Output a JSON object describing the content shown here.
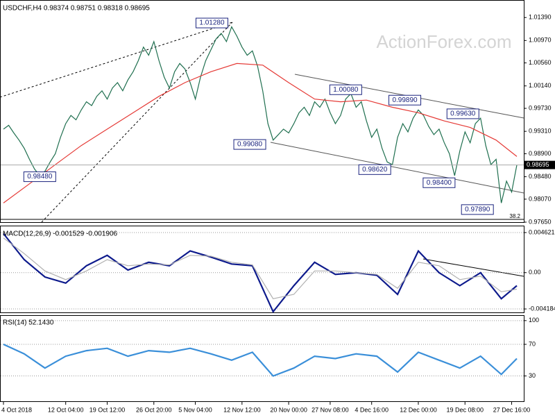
{
  "chart_data": [
    {
      "type": "line",
      "title": "USDCHF,H4 0.98374 0.98751 0.98318 0.98695",
      "watermark": "ActionForex.com",
      "fib_label": "38.2",
      "xlim": [
        0,
        99
      ],
      "xticks": [
        {
          "value": 0,
          "label": "4 Oct 2018"
        },
        {
          "value": 12,
          "label": "12 Oct 04:00"
        },
        {
          "value": 20,
          "label": "19 Oct 12:00"
        },
        {
          "value": 29,
          "label": "26 Oct 20:00"
        },
        {
          "value": 37,
          "label": "5 Nov 04:00"
        },
        {
          "value": 46,
          "label": "12 Nov 12:00"
        },
        {
          "value": 55,
          "label": "20 Nov 00:00"
        },
        {
          "value": 63,
          "label": "27 Nov 08:00"
        },
        {
          "value": 71,
          "label": "4 Dec 16:00"
        },
        {
          "value": 80,
          "label": "12 Dec 00:00"
        },
        {
          "value": 89,
          "label": "19 Dec 08:00"
        },
        {
          "value": 98,
          "label": "27 Dec 16:00"
        }
      ],
      "ylim": [
        0.9765,
        1.0171
      ],
      "yticks": [
        {
          "value": 1.0139,
          "label": "1.01390"
        },
        {
          "value": 1.0097,
          "label": "1.00970"
        },
        {
          "value": 1.0056,
          "label": "1.00560"
        },
        {
          "value": 1.0014,
          "label": "1.00140"
        },
        {
          "value": 0.9973,
          "label": "0.99730"
        },
        {
          "value": 0.9931,
          "label": "0.99310"
        },
        {
          "value": 0.989,
          "label": "0.98900"
        },
        {
          "value": 0.9848,
          "label": "0.98480"
        },
        {
          "value": 0.9807,
          "label": "0.98070"
        },
        {
          "value": 0.9765,
          "label": "0.97650"
        }
      ],
      "last": {
        "value": 0.98695,
        "label": "0.98695"
      },
      "series": [
        {
          "color": "#1f6f4f",
          "values": [
            0.9935,
            0.9942,
            0.9928,
            0.9915,
            0.99,
            0.988,
            0.9862,
            0.985,
            0.9858,
            0.9875,
            0.989,
            0.992,
            0.9945,
            0.996,
            0.9952,
            0.997,
            0.9985,
            0.9978,
            0.9995,
            1.0005,
            0.999,
            1.001,
            1.002,
            1.0005,
            1.0025,
            1.004,
            1.006,
            1.0085,
            1.007,
            1.0095,
            1.006,
            1.003,
            1.001,
            1.004,
            1.0055,
            1.0045,
            1.002,
            0.999,
            1.003,
            1.006,
            1.008,
            1.01,
            1.011,
            1.0095,
            1.0122,
            1.0105,
            1.0085,
            1.007,
            1.0078,
            1.005,
            1.0005,
            0.9945,
            0.9915,
            0.9925,
            0.9935,
            0.9928,
            0.9945,
            0.9965,
            0.9975,
            0.996,
            0.9985,
            0.9975,
            0.999,
            0.9965,
            0.9945,
            0.996,
            0.999,
            1.0,
            0.9975,
            0.9985,
            0.995,
            0.992,
            0.9935,
            0.99,
            0.9875,
            0.987,
            0.992,
            0.9945,
            0.993,
            0.9955,
            0.997,
            0.996,
            0.994,
            0.9925,
            0.9935,
            0.991,
            0.989,
            0.985,
            0.9895,
            0.993,
            0.991,
            0.9945,
            0.9955,
            0.9905,
            0.987,
            0.988,
            0.98,
            0.984,
            0.982,
            0.98695
          ]
        },
        {
          "color": "#e53935",
          "x": [
            0,
            5,
            10,
            15,
            20,
            25,
            30,
            35,
            40,
            45,
            50,
            55,
            60,
            65,
            70,
            75,
            80,
            85,
            90,
            95,
            99
          ],
          "values": [
            0.98,
            0.9835,
            0.987,
            0.9905,
            0.9935,
            0.9965,
            0.9995,
            1.002,
            1.004,
            1.0055,
            1.0052,
            1.002,
            0.999,
            0.9985,
            0.9988,
            0.9975,
            0.9965,
            0.995,
            0.9938,
            0.9915,
            0.9885
          ]
        }
      ],
      "annotations": [
        {
          "text": "1.01280",
          "x": 40.2,
          "y": 1.0129
        },
        {
          "text": "0.98480",
          "x": 7,
          "y": 0.9848
        },
        {
          "text": "0.99080",
          "x": 47.5,
          "y": 0.9907
        },
        {
          "text": "1.00080",
          "x": 66,
          "y": 1.0007
        },
        {
          "text": "0.98620",
          "x": 71.6,
          "y": 0.9861
        },
        {
          "text": "0.99890",
          "x": 77.4,
          "y": 0.9988
        },
        {
          "text": "0.98400",
          "x": 84,
          "y": 0.9837
        },
        {
          "text": "0.99630",
          "x": 88.6,
          "y": 0.9963
        },
        {
          "text": "0.97890",
          "x": 91.4,
          "y": 0.9788
        }
      ]
    },
    {
      "type": "line",
      "title": "MACD(12,26,9) -0.001529 -0.001906",
      "ylim": [
        -0.00458,
        0.00534
      ],
      "yticks": [
        0.004621,
        {
          "value": 0,
          "label": "0.00"
        },
        -0.004184
      ],
      "series": [
        {
          "color": "#0d1a8c",
          "x": [
            0,
            4,
            8,
            12,
            16,
            20,
            24,
            28,
            32,
            36,
            40,
            44,
            48,
            52,
            56,
            60,
            64,
            68,
            72,
            76,
            80,
            84,
            88,
            92,
            96,
            99
          ],
          "values": [
            0.0045,
            0.0015,
            -0.0005,
            -0.0012,
            0.0008,
            0.002,
            0.0003,
            0.0012,
            0.0008,
            0.0025,
            0.0018,
            0.001,
            0.0008,
            -0.0045,
            -0.0015,
            0.0012,
            -0.0002,
            0,
            -0.0003,
            -0.0025,
            0.0025,
            0,
            -0.0015,
            0,
            -0.003,
            -0.0015
          ]
        },
        {
          "color": "#b0b0b0",
          "x": [
            0,
            4,
            8,
            12,
            16,
            20,
            24,
            28,
            32,
            36,
            40,
            44,
            48,
            52,
            56,
            60,
            64,
            68,
            72,
            76,
            80,
            84,
            88,
            92,
            96,
            99
          ],
          "values": [
            0.004,
            0.0022,
            0.0002,
            -0.0008,
            0.0002,
            0.0015,
            0.0008,
            0.001,
            0.0009,
            0.002,
            0.0019,
            0.0012,
            0.0009,
            -0.003,
            -0.0025,
            0.0002,
            0.0002,
            0,
            -0.0002,
            -0.0018,
            0.0012,
            0.0008,
            -0.0008,
            -0.0004,
            -0.0022,
            -0.0019
          ]
        }
      ]
    },
    {
      "type": "line",
      "title": "RSI(14) 52.1430",
      "ylim": [
        -2,
        106
      ],
      "yticks": [
        100,
        70,
        30
      ],
      "series": [
        {
          "color": "#3a8fd9",
          "x": [
            0,
            4,
            8,
            12,
            16,
            20,
            24,
            28,
            32,
            36,
            40,
            44,
            48,
            52,
            56,
            60,
            64,
            68,
            72,
            76,
            80,
            84,
            88,
            92,
            96,
            99
          ],
          "values": [
            70,
            58,
            40,
            55,
            62,
            65,
            55,
            62,
            60,
            65,
            58,
            50,
            60,
            30,
            40,
            55,
            52,
            58,
            55,
            35,
            60,
            50,
            40,
            55,
            32,
            52
          ]
        }
      ]
    }
  ]
}
